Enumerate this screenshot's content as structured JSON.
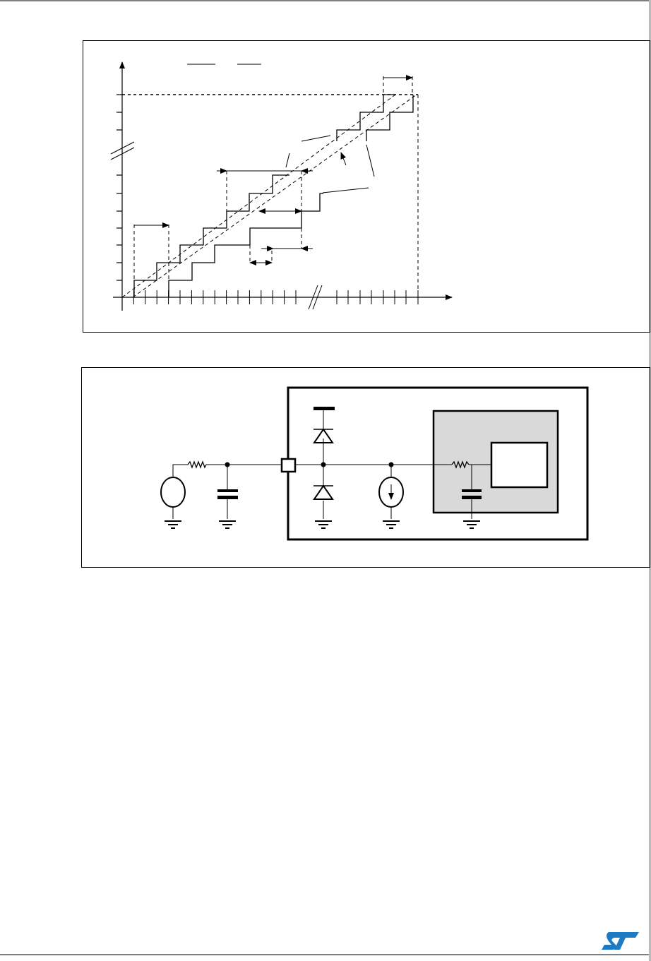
{
  "page": {
    "logo": {
      "text": "ST",
      "icon": "st-logo-icon",
      "color": "#1e7ac2"
    }
  },
  "figures": [
    {
      "kind": "adc-transfer-characteristic-diagram",
      "labels": []
    },
    {
      "kind": "analog-input-equivalent-circuit",
      "labels": []
    }
  ]
}
